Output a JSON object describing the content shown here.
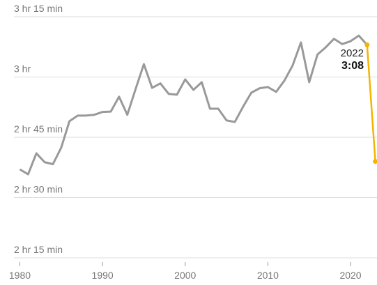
{
  "chart_data": {
    "type": "line",
    "x": [
      1980,
      1981,
      1982,
      1983,
      1984,
      1985,
      1986,
      1987,
      1988,
      1989,
      1990,
      1991,
      1992,
      1993,
      1994,
      1995,
      1996,
      1997,
      1998,
      1999,
      2000,
      2001,
      2002,
      2003,
      2004,
      2005,
      2006,
      2007,
      2008,
      2009,
      2010,
      2011,
      2012,
      2013,
      2014,
      2015,
      2016,
      2017,
      2018,
      2019,
      2020,
      2021,
      2022,
      2023
    ],
    "series": [
      {
        "color": "#999999",
        "values": [
          157.0,
          155.8,
          161.0,
          158.8,
          158.3,
          162.4,
          169.0,
          170.4,
          170.4,
          170.6,
          171.3,
          171.4,
          175.1,
          170.6,
          177.0,
          183.2,
          177.3,
          178.4,
          175.8,
          175.6,
          179.4,
          176.8,
          178.7,
          172.1,
          172.1,
          169.2,
          168.8,
          172.6,
          176.1,
          177.2,
          177.5,
          176.3,
          179.1,
          182.9,
          188.6,
          178.7,
          185.6,
          187.4,
          189.5,
          188.2,
          188.9,
          190.3,
          188,
          null
        ]
      },
      {
        "color": "#f5b400",
        "values": [
          null,
          null,
          null,
          null,
          null,
          null,
          null,
          null,
          null,
          null,
          null,
          null,
          null,
          null,
          null,
          null,
          null,
          null,
          null,
          null,
          null,
          null,
          null,
          null,
          null,
          null,
          null,
          null,
          null,
          null,
          null,
          null,
          null,
          null,
          null,
          null,
          null,
          null,
          null,
          null,
          null,
          null,
          188,
          159
        ]
      }
    ],
    "annotations": [
      "2022",
      "3:08"
    ],
    "xlim": [
      1977.6,
      2023.2
    ],
    "xticks": [
      1980,
      1990,
      2000,
      2010,
      2020
    ],
    "ylim": [
      135,
      195
    ],
    "yticks": [
      {
        "value": 135,
        "label": "2 hr 15 min"
      },
      {
        "value": 150,
        "label": "2 hr 30 min"
      },
      {
        "value": 165,
        "label": "2 hr 45 min"
      },
      {
        "value": 180,
        "label": "3 hr"
      },
      {
        "value": 195,
        "label": "3 hr 15 min"
      }
    ],
    "grid": true
  }
}
